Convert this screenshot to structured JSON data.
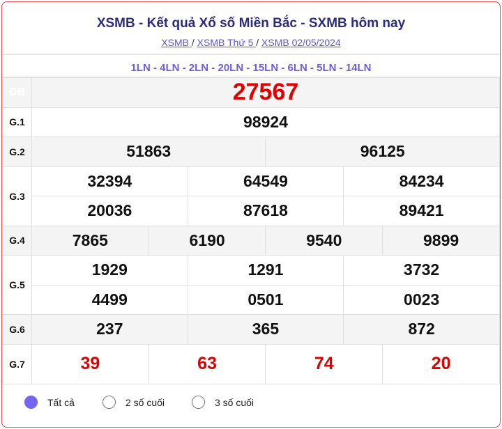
{
  "header": {
    "title": "XSMB - Kết quả Xổ số Miền Bắc - SXMB hôm nay",
    "breadcrumbs": [
      "XSMB ",
      "XSMB Thứ 5 ",
      "XSMB 02/05/2024"
    ],
    "separator": "/"
  },
  "ln_codes": "1LN - 4LN - 2LN - 20LN - 15LN - 6LN - 5LN - 14LN",
  "prizes": {
    "db": {
      "label": "ĐB",
      "values": [
        "27567"
      ]
    },
    "g1": {
      "label": "G.1",
      "values": [
        "98924"
      ]
    },
    "g2": {
      "label": "G.2",
      "values": [
        "51863",
        "96125"
      ]
    },
    "g3": {
      "label": "G.3",
      "values": [
        "32394",
        "64549",
        "84234",
        "20036",
        "87618",
        "89421"
      ]
    },
    "g4": {
      "label": "G.4",
      "values": [
        "7865",
        "6190",
        "9540",
        "9899"
      ]
    },
    "g5": {
      "label": "G.5",
      "values": [
        "1929",
        "1291",
        "3732",
        "4499",
        "0501",
        "0023"
      ]
    },
    "g6": {
      "label": "G.6",
      "values": [
        "237",
        "365",
        "872"
      ]
    },
    "g7": {
      "label": "G.7",
      "values": [
        "39",
        "63",
        "74",
        "20"
      ]
    }
  },
  "filters": {
    "options": [
      "Tất cả",
      "2 số cuối",
      "3 số cuối"
    ],
    "selected": "Tất cả"
  },
  "colors": {
    "accent": "#7367f0",
    "special": "#e00000",
    "border": "#e8474b",
    "title": "#2b2d7c"
  }
}
